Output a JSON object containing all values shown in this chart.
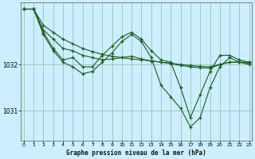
{
  "title": "Graphe pression niveau de la mer (hPa)",
  "bg_color": "#cceeff",
  "grid_color": "#99ccbb",
  "line_color": "#1a5c1a",
  "marker_color": "#1a5c1a",
  "x_ticks": [
    0,
    1,
    2,
    3,
    4,
    5,
    6,
    7,
    8,
    9,
    10,
    11,
    12,
    13,
    14,
    15,
    16,
    17,
    18,
    19,
    20,
    21,
    22,
    23
  ],
  "y_ticks": [
    1031,
    1032
  ],
  "xlim": [
    -0.3,
    23.3
  ],
  "ylim": [
    1030.35,
    1033.35
  ],
  "series": [
    {
      "x": [
        0,
        1,
        2,
        3,
        4,
        5,
        6,
        7,
        8,
        9,
        10,
        11,
        12,
        13,
        14,
        15,
        16,
        17,
        18,
        19,
        20,
        21,
        22,
        23
      ],
      "y": [
        1033.2,
        1033.2,
        1032.85,
        1032.7,
        1032.55,
        1032.45,
        1032.35,
        1032.28,
        1032.22,
        1032.18,
        1032.15,
        1032.12,
        1032.1,
        1032.08,
        1032.05,
        1032.03,
        1032.0,
        1031.98,
        1031.96,
        1031.95,
        1032.0,
        1032.05,
        1032.05,
        1032.05
      ]
    },
    {
      "x": [
        0,
        1,
        2,
        3,
        4,
        5,
        6,
        7,
        8,
        9,
        10,
        11,
        12,
        13,
        14,
        15,
        16,
        17,
        18,
        19,
        20,
        21,
        22,
        23
      ],
      "y": [
        1033.2,
        1033.2,
        1032.75,
        1032.55,
        1032.35,
        1032.3,
        1032.2,
        1032.15,
        1032.1,
        1032.12,
        1032.15,
        1032.18,
        1032.12,
        1032.08,
        1032.05,
        1032.02,
        1031.98,
        1031.95,
        1031.93,
        1031.92,
        1032.0,
        1032.05,
        1032.05,
        1032.03
      ]
    },
    {
      "x": [
        0,
        1,
        2,
        3,
        4,
        5,
        6,
        7,
        8,
        9,
        10,
        11,
        12,
        13,
        14,
        15,
        16,
        17,
        18,
        19,
        20,
        21,
        22,
        23
      ],
      "y": [
        1033.2,
        1033.2,
        1032.7,
        1032.35,
        1032.1,
        1032.15,
        1031.95,
        1031.95,
        1032.2,
        1032.4,
        1032.6,
        1032.7,
        1032.55,
        1032.3,
        1032.1,
        1032.05,
        1031.5,
        1030.85,
        1031.35,
        1031.85,
        1032.2,
        1032.2,
        1032.1,
        1032.05
      ]
    },
    {
      "x": [
        0,
        1,
        2,
        3,
        4,
        5,
        6,
        7,
        8,
        9,
        10,
        11,
        12,
        13,
        14,
        15,
        16,
        17,
        18,
        19,
        20,
        21,
        22,
        23
      ],
      "y": [
        1033.2,
        1033.2,
        1032.65,
        1032.3,
        1032.05,
        1031.95,
        1031.8,
        1031.85,
        1032.05,
        1032.25,
        1032.5,
        1032.65,
        1032.5,
        1032.15,
        1031.55,
        1031.3,
        1031.05,
        1030.65,
        1030.85,
        1031.5,
        1031.95,
        1032.15,
        1032.05,
        1032.0
      ]
    }
  ]
}
